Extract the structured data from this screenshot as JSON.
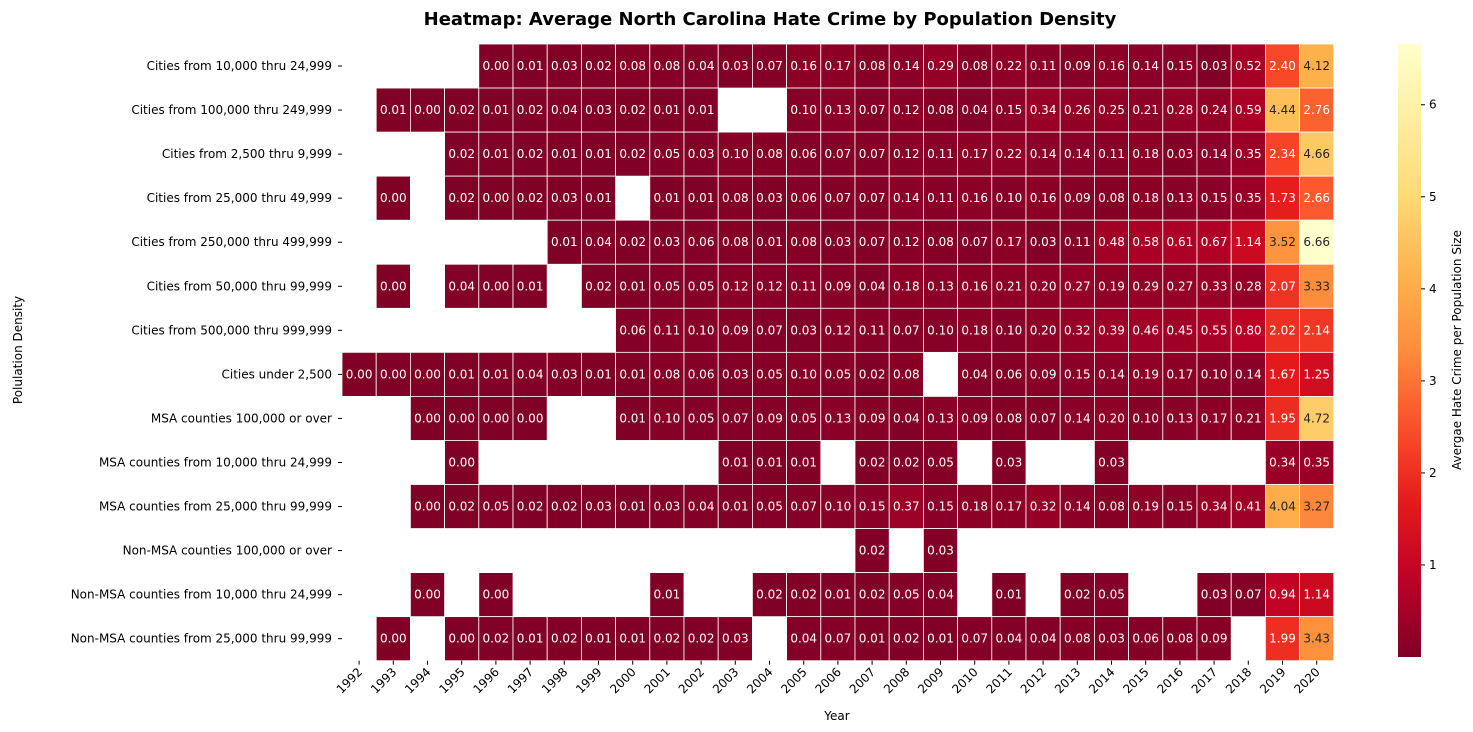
{
  "chart_data": {
    "type": "heatmap",
    "title": "Heatmap: Average North Carolina Hate Crime by Population Density",
    "xlabel": "Year",
    "ylabel": "Polulation Density",
    "colorbar_label": "Avergae Hate Crime per Population Size",
    "colormap": "YlOrRd_r",
    "color_range": [
      0,
      6.66
    ],
    "colorbar_ticks": [
      1,
      2,
      3,
      4,
      5,
      6
    ],
    "years": [
      "1992",
      "1993",
      "1994",
      "1995",
      "1996",
      "1997",
      "1998",
      "1999",
      "2000",
      "2001",
      "2002",
      "2003",
      "2004",
      "2005",
      "2006",
      "2007",
      "2008",
      "2009",
      "2010",
      "2011",
      "2012",
      "2013",
      "2014",
      "2015",
      "2016",
      "2017",
      "2018",
      "2019",
      "2020"
    ],
    "rows": [
      {
        "name": "Cities from 10,000 thru 24,999",
        "values": [
          null,
          null,
          null,
          null,
          0.0,
          0.01,
          0.03,
          0.02,
          0.08,
          0.08,
          0.04,
          0.03,
          0.07,
          0.16,
          0.17,
          0.08,
          0.14,
          0.29,
          0.08,
          0.22,
          0.11,
          0.09,
          0.16,
          0.14,
          0.15,
          0.03,
          0.52,
          2.4,
          4.12
        ]
      },
      {
        "name": "Cities from 100,000 thru 249,999",
        "values": [
          null,
          0.01,
          0.0,
          0.02,
          0.01,
          0.02,
          0.04,
          0.03,
          0.02,
          0.01,
          0.01,
          null,
          null,
          0.1,
          0.13,
          0.07,
          0.12,
          0.08,
          0.04,
          0.15,
          0.34,
          0.26,
          0.25,
          0.21,
          0.28,
          0.24,
          0.59,
          4.44,
          2.76
        ]
      },
      {
        "name": "Cities from 2,500 thru 9,999",
        "values": [
          null,
          null,
          null,
          0.02,
          0.01,
          0.02,
          0.01,
          0.01,
          0.02,
          0.05,
          0.03,
          0.1,
          0.08,
          0.06,
          0.07,
          0.07,
          0.12,
          0.11,
          0.17,
          0.22,
          0.14,
          0.14,
          0.11,
          0.18,
          0.03,
          0.14,
          0.35,
          2.34,
          4.66
        ]
      },
      {
        "name": "Cities from 25,000 thru 49,999",
        "values": [
          null,
          0.0,
          null,
          0.02,
          0.0,
          0.02,
          0.03,
          0.01,
          null,
          0.01,
          0.01,
          0.08,
          0.03,
          0.06,
          0.07,
          0.07,
          0.14,
          0.11,
          0.16,
          0.1,
          0.16,
          0.09,
          0.08,
          0.18,
          0.13,
          0.15,
          0.35,
          1.73,
          2.66
        ]
      },
      {
        "name": "Cities from 250,000 thru 499,999",
        "values": [
          null,
          null,
          null,
          null,
          null,
          null,
          0.01,
          0.04,
          0.02,
          0.03,
          0.06,
          0.08,
          0.01,
          0.08,
          0.03,
          0.07,
          0.12,
          0.08,
          0.07,
          0.17,
          0.03,
          0.11,
          0.48,
          0.58,
          0.61,
          0.67,
          1.14,
          3.52,
          6.66
        ]
      },
      {
        "name": "Cities from 50,000 thru 99,999",
        "values": [
          null,
          0.0,
          null,
          0.04,
          0.0,
          0.01,
          null,
          0.02,
          0.01,
          0.05,
          0.05,
          0.12,
          0.12,
          0.11,
          0.09,
          0.04,
          0.18,
          0.13,
          0.16,
          0.21,
          0.2,
          0.27,
          0.19,
          0.29,
          0.27,
          0.33,
          0.28,
          2.07,
          3.33
        ]
      },
      {
        "name": "Cities from 500,000 thru 999,999",
        "values": [
          null,
          null,
          null,
          null,
          null,
          null,
          null,
          null,
          0.06,
          0.11,
          0.1,
          0.09,
          0.07,
          0.03,
          0.12,
          0.11,
          0.07,
          0.1,
          0.18,
          0.1,
          0.2,
          0.32,
          0.39,
          0.46,
          0.45,
          0.55,
          0.8,
          2.02,
          2.14
        ]
      },
      {
        "name": "Cities under 2,500",
        "values": [
          0.0,
          0.0,
          0.0,
          0.01,
          0.01,
          0.04,
          0.03,
          0.01,
          0.01,
          0.08,
          0.06,
          0.03,
          0.05,
          0.1,
          0.05,
          0.02,
          0.08,
          null,
          0.04,
          0.06,
          0.09,
          0.15,
          0.14,
          0.19,
          0.17,
          0.1,
          0.14,
          1.67,
          1.25
        ]
      },
      {
        "name": "MSA counties 100,000 or over",
        "values": [
          null,
          null,
          0.0,
          0.0,
          0.0,
          0.0,
          null,
          null,
          0.01,
          0.1,
          0.05,
          0.07,
          0.09,
          0.05,
          0.13,
          0.09,
          0.04,
          0.13,
          0.09,
          0.08,
          0.07,
          0.14,
          0.2,
          0.1,
          0.13,
          0.17,
          0.21,
          1.95,
          4.72
        ]
      },
      {
        "name": "MSA counties from 10,000 thru 24,999",
        "values": [
          null,
          null,
          null,
          0.0,
          null,
          null,
          null,
          null,
          null,
          null,
          null,
          0.01,
          0.01,
          0.01,
          null,
          0.02,
          0.02,
          0.05,
          null,
          0.03,
          null,
          null,
          0.03,
          null,
          null,
          null,
          null,
          0.34,
          0.35
        ]
      },
      {
        "name": "MSA counties from 25,000 thru 99,999",
        "values": [
          null,
          null,
          0.0,
          0.02,
          0.05,
          0.02,
          0.02,
          0.03,
          0.01,
          0.03,
          0.04,
          0.01,
          0.05,
          0.07,
          0.1,
          0.15,
          0.37,
          0.15,
          0.18,
          0.17,
          0.32,
          0.14,
          0.08,
          0.19,
          0.15,
          0.34,
          0.41,
          4.04,
          3.27
        ]
      },
      {
        "name": "Non-MSA counties 100,000 or over",
        "values": [
          null,
          null,
          null,
          null,
          null,
          null,
          null,
          null,
          null,
          null,
          null,
          null,
          null,
          null,
          null,
          0.02,
          null,
          0.03,
          null,
          null,
          null,
          null,
          null,
          null,
          null,
          null,
          null,
          null,
          null
        ]
      },
      {
        "name": "Non-MSA counties from 10,000 thru 24,999",
        "values": [
          null,
          null,
          0.0,
          null,
          0.0,
          null,
          null,
          null,
          null,
          0.01,
          null,
          null,
          0.02,
          0.02,
          0.01,
          0.02,
          0.05,
          0.04,
          null,
          0.01,
          null,
          0.02,
          0.05,
          null,
          null,
          0.03,
          0.07,
          0.94,
          1.14
        ]
      },
      {
        "name": "Non-MSA counties from 25,000 thru 99,999",
        "values": [
          null,
          0.0,
          null,
          0.0,
          0.02,
          0.01,
          0.02,
          0.01,
          0.01,
          0.02,
          0.02,
          0.03,
          null,
          0.04,
          0.07,
          0.01,
          0.02,
          0.01,
          0.07,
          0.04,
          0.04,
          0.08,
          0.03,
          0.06,
          0.08,
          0.09,
          null,
          1.99,
          3.43
        ]
      }
    ]
  }
}
